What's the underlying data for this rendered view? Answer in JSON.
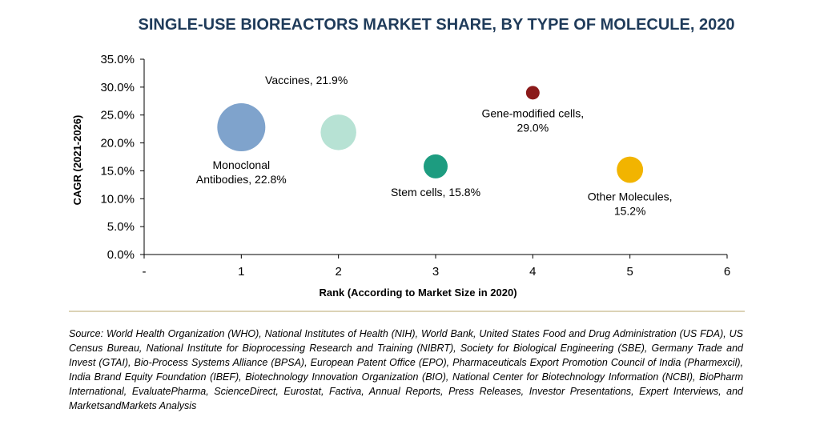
{
  "chart_data": {
    "type": "scatter",
    "title": "SINGLE-USE BIOREACTORS MARKET SHARE, BY TYPE OF MOLECULE, 2020",
    "xlabel": "Rank (According to Market Size in 2020)",
    "ylabel": "CAGR (2021-2026)",
    "xlim": [
      0,
      6
    ],
    "ylim": [
      0,
      35
    ],
    "x_ticks": [
      "-",
      "1",
      "2",
      "3",
      "4",
      "5",
      "6"
    ],
    "y_ticks": [
      "0.0%",
      "5.0%",
      "10.0%",
      "15.0%",
      "20.0%",
      "25.0%",
      "30.0%",
      "35.0%"
    ],
    "grid": false,
    "legend": "none",
    "points": [
      {
        "x": 1,
        "y": 22.8,
        "size": 1.0,
        "color": "#7fa3cc",
        "label": [
          "Monoclonal",
          "Antibodies, 22.8%"
        ],
        "label_pos": "below"
      },
      {
        "x": 2,
        "y": 21.9,
        "size": 0.55,
        "color": "#b7e2d4",
        "label": [
          "Vaccines, 21.9%"
        ],
        "label_pos": "above-left"
      },
      {
        "x": 3,
        "y": 15.8,
        "size": 0.25,
        "color": "#1d9c80",
        "label": [
          "Stem cells, 15.8%"
        ],
        "label_pos": "below"
      },
      {
        "x": 4,
        "y": 29.0,
        "size": 0.08,
        "color": "#8b1a1a",
        "label": [
          "Gene-modified cells,",
          "29.0%"
        ],
        "label_pos": "below"
      },
      {
        "x": 5,
        "y": 15.2,
        "size": 0.3,
        "color": "#f2b400",
        "label": [
          "Other Molecules,",
          "15.2%"
        ],
        "label_pos": "below"
      }
    ]
  },
  "source_text": "Source: World Health Organization (WHO), National Institutes of Health (NIH), World Bank, United States Food and Drug Administration (US FDA), US Census Bureau, National Institute for Bioprocessing Research and Training (NIBRT), Society for Biological Engineering (SBE), Germany Trade and Invest (GTAI), Bio-Process Systems Alliance (BPSA), European Patent Office (EPO), Pharmaceuticals Export Promotion Council of India (Pharmexcil), India Brand Equity Foundation (IBEF), Biotechnology Innovation Organization (BIO), National Center for Biotechnology Information (NCBI), BioPharm International, EvaluatePharma, ScienceDirect, Eurostat, Factiva, Annual Reports, Press Releases, Investor Presentations, Expert Interviews, and MarketsandMarkets Analysis",
  "colors": {
    "divider": "#c8b98a",
    "axis": "#000000"
  }
}
